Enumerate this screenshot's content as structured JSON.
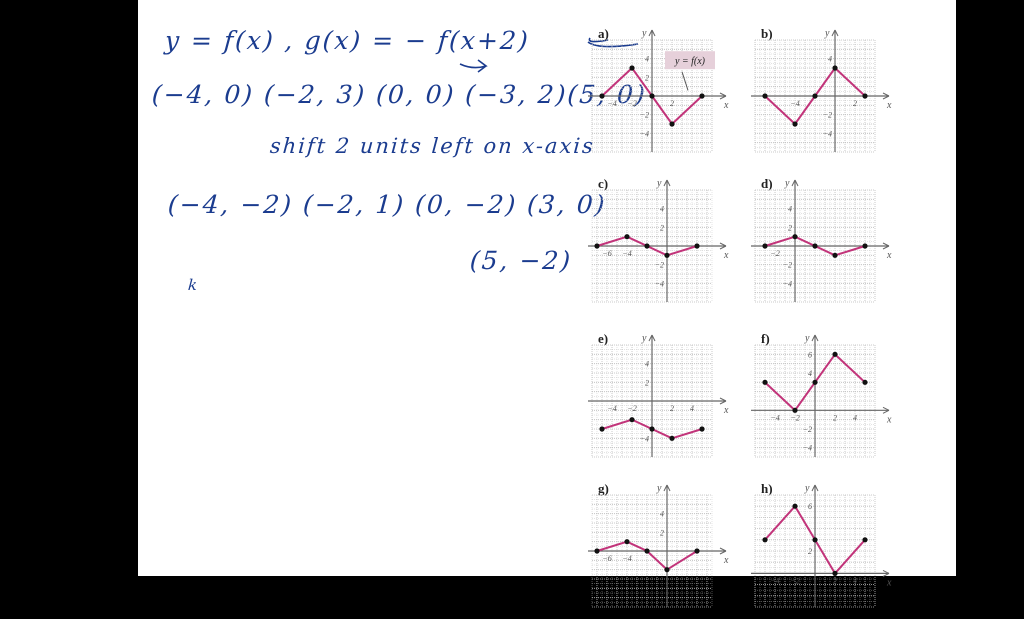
{
  "notes": {
    "line1": "y = f(x) ,   g(x)  =  − f(x+2)",
    "line2": "(−4, 0) (−2, 3) (0, 0)  (−3, 2)(5, 0)",
    "line3": "shift 2 units left on x-axis",
    "line4": "(−4, −2)  (−2, 1)  (0, −2)   (3, 0)",
    "line5": "(5, −2)",
    "mark": "k",
    "ink_color": "#1b3c8f"
  },
  "graph_style": {
    "line_color": "#c2347a",
    "point_color": "#111111",
    "grid_color": "#bbbbbb",
    "axis_color": "#666666"
  },
  "chart_data": [
    {
      "label": "a)",
      "type": "line",
      "callout": "y = f(x)",
      "xlabel": "x",
      "ylabel": "y",
      "xlim": [
        -6,
        6
      ],
      "ylim": [
        -6,
        6
      ],
      "xticks": [
        -4,
        -2,
        2
      ],
      "yticks": [
        4,
        2,
        -2,
        -4
      ],
      "points": [
        [
          -5,
          0
        ],
        [
          -2,
          3
        ],
        [
          0,
          0
        ],
        [
          2,
          -3
        ],
        [
          5,
          0
        ]
      ]
    },
    {
      "label": "b)",
      "type": "line",
      "xlabel": "x",
      "ylabel": "y",
      "xlim": [
        -8,
        4
      ],
      "ylim": [
        -6,
        6
      ],
      "xticks": [
        -4,
        2
      ],
      "yticks": [
        4,
        -2,
        -4
      ],
      "points": [
        [
          -7,
          0
        ],
        [
          -4,
          -3
        ],
        [
          -2,
          0
        ],
        [
          0,
          3
        ],
        [
          3,
          0
        ]
      ]
    },
    {
      "label": "c)",
      "type": "line",
      "xlabel": "x",
      "ylabel": "y",
      "xlim": [
        -7.5,
        4.5
      ],
      "ylim": [
        -6,
        6
      ],
      "xticks": [
        -6,
        -4
      ],
      "yticks": [
        4,
        2,
        -2,
        -4
      ],
      "points": [
        [
          -7,
          0
        ],
        [
          -4,
          1
        ],
        [
          -2,
          0
        ],
        [
          0,
          -1
        ],
        [
          3,
          0
        ]
      ]
    },
    {
      "label": "d)",
      "type": "line",
      "xlabel": "x",
      "ylabel": "y",
      "xlim": [
        -4,
        8
      ],
      "ylim": [
        -6,
        6
      ],
      "xticks": [
        -2
      ],
      "yticks": [
        4,
        2,
        -2,
        -4
      ],
      "points": [
        [
          -3,
          0
        ],
        [
          0,
          1
        ],
        [
          2,
          0
        ],
        [
          4,
          -1
        ],
        [
          7,
          0
        ]
      ]
    },
    {
      "label": "e)",
      "type": "line",
      "xlabel": "x",
      "ylabel": "y",
      "xlim": [
        -6,
        6
      ],
      "ylim": [
        -6,
        6
      ],
      "xticks": [
        -4,
        -2,
        2,
        4
      ],
      "yticks": [
        4,
        2,
        -4
      ],
      "points": [
        [
          -5,
          -3
        ],
        [
          -2,
          -2
        ],
        [
          0,
          -3
        ],
        [
          2,
          -4
        ],
        [
          5,
          -3
        ]
      ]
    },
    {
      "label": "f)",
      "type": "line",
      "xlabel": "x",
      "ylabel": "y",
      "xlim": [
        -6,
        6
      ],
      "ylim": [
        -5,
        7
      ],
      "xticks": [
        -4,
        -2,
        2,
        4
      ],
      "yticks": [
        6,
        4,
        -2,
        -4
      ],
      "points": [
        [
          -5,
          3
        ],
        [
          -2,
          0
        ],
        [
          0,
          3
        ],
        [
          2,
          6
        ],
        [
          5,
          3
        ]
      ]
    },
    {
      "label": "g)",
      "type": "line",
      "xlabel": "x",
      "ylabel": "y",
      "xlim": [
        -7.5,
        4.5
      ],
      "ylim": [
        -6,
        6
      ],
      "xticks": [
        -6,
        -4
      ],
      "yticks": [
        4,
        2
      ],
      "points": [
        [
          -7,
          0
        ],
        [
          -4,
          1
        ],
        [
          -2,
          0
        ],
        [
          0,
          -2
        ],
        [
          3,
          0
        ]
      ]
    },
    {
      "label": "h)",
      "type": "line",
      "xlabel": "x",
      "ylabel": "y",
      "xlim": [
        -6,
        6
      ],
      "ylim": [
        -3,
        7
      ],
      "xticks": [
        -4,
        -2,
        2,
        4
      ],
      "yticks": [
        6,
        2
      ],
      "points": [
        [
          -5,
          3
        ],
        [
          -2,
          6
        ],
        [
          0,
          3
        ],
        [
          2,
          0
        ],
        [
          5,
          3
        ]
      ]
    }
  ]
}
